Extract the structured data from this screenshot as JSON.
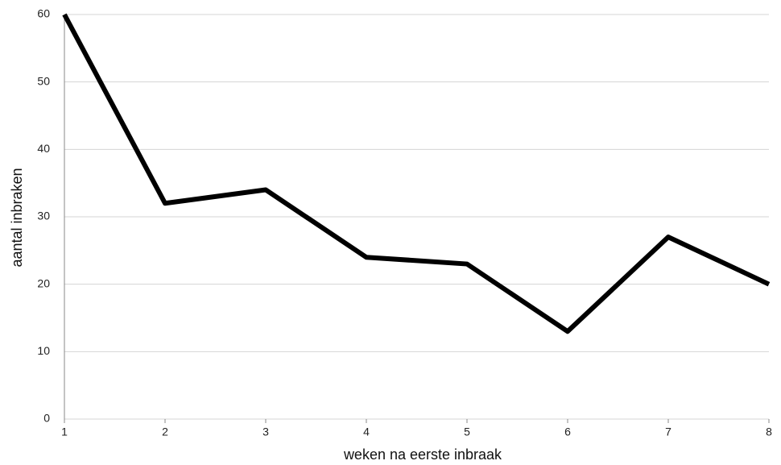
{
  "chart_data": {
    "type": "line",
    "x_label": "weken na eerste inbraak",
    "y_label": "aantal inbraken",
    "x": [
      1,
      2,
      3,
      4,
      5,
      6,
      7,
      8
    ],
    "series": [
      {
        "color": "#000000",
        "values": [
          60,
          32,
          34,
          24,
          23,
          13,
          27,
          20
        ]
      }
    ],
    "xlim": [
      1,
      8
    ],
    "xticks": [
      1,
      2,
      3,
      4,
      5,
      6,
      7,
      8
    ],
    "ylim": [
      0,
      60
    ],
    "yticks": [
      0,
      10,
      20,
      30,
      40,
      50,
      60
    ],
    "grid": true
  }
}
